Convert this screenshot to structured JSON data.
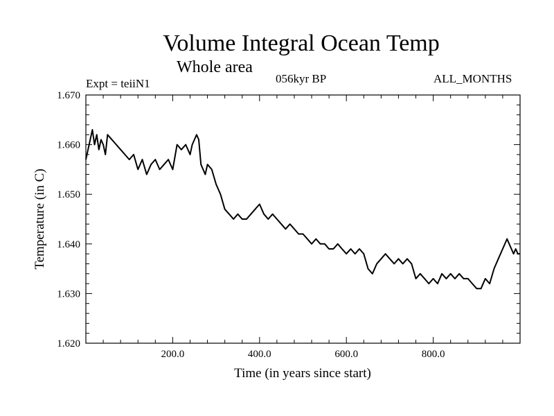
{
  "header": {
    "title": "Volume Integral Ocean Temp",
    "subtitle": "Whole area",
    "experiment": "Expt = teiiN1",
    "period": "056kyr BP",
    "months": "ALL_MONTHS"
  },
  "chart_data": {
    "type": "line",
    "title": "Volume Integral Ocean Temp",
    "subtitle": "Whole area",
    "xlabel": "Time (in years since start)",
    "ylabel": "Temperature (in C)",
    "xlim": [
      0,
      1000
    ],
    "ylim": [
      1.62,
      1.67
    ],
    "xticks": [
      200,
      400,
      600,
      800
    ],
    "xtick_labels": [
      "200.0",
      "400.0",
      "600.0",
      "800.0"
    ],
    "yticks": [
      1.62,
      1.63,
      1.64,
      1.65,
      1.66,
      1.67
    ],
    "ytick_labels": [
      "1.620",
      "1.630",
      "1.640",
      "1.650",
      "1.660",
      "1.670"
    ],
    "grid": false,
    "legend": "none",
    "line_color": "#000000",
    "series": [
      {
        "x": [
          0,
          5,
          10,
          15,
          20,
          25,
          30,
          35,
          40,
          45,
          50,
          60,
          70,
          80,
          90,
          100,
          110,
          120,
          130,
          140,
          150,
          160,
          170,
          180,
          190,
          200,
          210,
          220,
          230,
          240,
          245,
          250,
          255,
          260,
          265,
          270,
          275,
          280,
          290,
          300,
          310,
          320,
          330,
          340,
          350,
          360,
          370,
          380,
          390,
          400,
          410,
          420,
          430,
          440,
          450,
          460,
          470,
          480,
          490,
          500,
          510,
          520,
          530,
          540,
          550,
          560,
          570,
          580,
          590,
          600,
          610,
          620,
          630,
          640,
          650,
          660,
          670,
          680,
          690,
          700,
          710,
          720,
          730,
          740,
          750,
          760,
          770,
          780,
          790,
          800,
          810,
          820,
          830,
          840,
          850,
          860,
          870,
          880,
          890,
          900,
          910,
          920,
          930,
          940,
          950,
          960,
          970,
          975,
          980,
          985,
          990,
          995,
          1000
        ],
        "y": [
          1.657,
          1.659,
          1.661,
          1.663,
          1.66,
          1.662,
          1.659,
          1.661,
          1.66,
          1.658,
          1.662,
          1.661,
          1.66,
          1.659,
          1.658,
          1.657,
          1.658,
          1.655,
          1.657,
          1.654,
          1.656,
          1.657,
          1.655,
          1.656,
          1.657,
          1.655,
          1.66,
          1.659,
          1.66,
          1.658,
          1.66,
          1.661,
          1.662,
          1.661,
          1.656,
          1.655,
          1.654,
          1.656,
          1.655,
          1.652,
          1.65,
          1.647,
          1.646,
          1.645,
          1.646,
          1.645,
          1.645,
          1.646,
          1.647,
          1.648,
          1.646,
          1.645,
          1.646,
          1.645,
          1.644,
          1.643,
          1.644,
          1.643,
          1.642,
          1.642,
          1.641,
          1.64,
          1.641,
          1.64,
          1.64,
          1.639,
          1.639,
          1.64,
          1.639,
          1.638,
          1.639,
          1.638,
          1.639,
          1.638,
          1.635,
          1.634,
          1.636,
          1.637,
          1.638,
          1.637,
          1.636,
          1.637,
          1.636,
          1.637,
          1.636,
          1.633,
          1.634,
          1.633,
          1.632,
          1.633,
          1.632,
          1.634,
          1.633,
          1.634,
          1.633,
          1.634,
          1.633,
          1.633,
          1.632,
          1.631,
          1.631,
          1.633,
          1.632,
          1.635,
          1.637,
          1.639,
          1.641,
          1.64,
          1.639,
          1.638,
          1.639,
          1.638,
          1.638
        ]
      }
    ]
  }
}
